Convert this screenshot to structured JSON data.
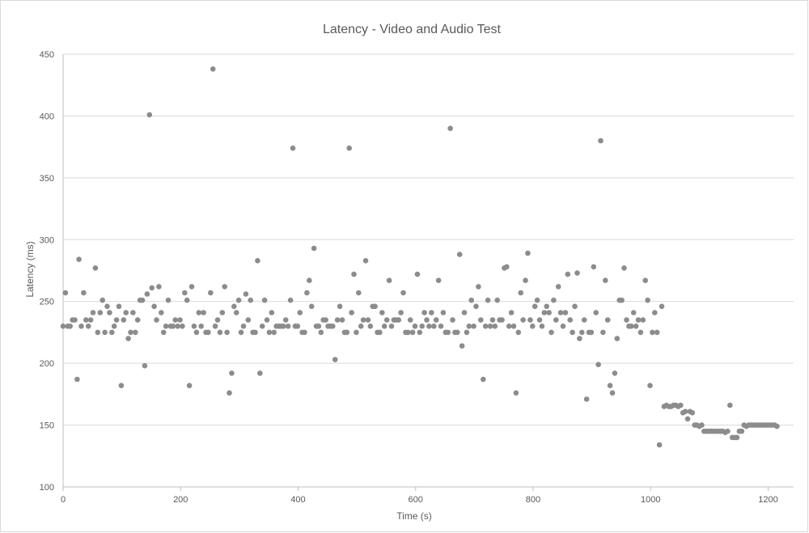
{
  "chart_data": {
    "type": "scatter",
    "title": "Latency - Video and Audio Test",
    "xlabel": "Time (s)",
    "ylabel": "Latency (ms)",
    "xlim": [
      0,
      1220
    ],
    "ylim": [
      100,
      450
    ],
    "x_ticks": [
      0,
      200,
      400,
      600,
      800,
      1000,
      1200
    ],
    "y_ticks": [
      100,
      150,
      200,
      250,
      300,
      350,
      400,
      450
    ],
    "grid": true,
    "legend": "none",
    "color": "#8c8c8c",
    "series": [
      {
        "points": [
          [
            0,
            230
          ],
          [
            4,
            257
          ],
          [
            8,
            230
          ],
          [
            12,
            230
          ],
          [
            16,
            235
          ],
          [
            20,
            235
          ],
          [
            24,
            187
          ],
          [
            27,
            284
          ],
          [
            31,
            230
          ],
          [
            35,
            257
          ],
          [
            39,
            235
          ],
          [
            43,
            230
          ],
          [
            47,
            235
          ],
          [
            51,
            241
          ],
          [
            55,
            277
          ],
          [
            59,
            225
          ],
          [
            63,
            241
          ],
          [
            67,
            251
          ],
          [
            71,
            225
          ],
          [
            75,
            246
          ],
          [
            79,
            241
          ],
          [
            83,
            225
          ],
          [
            87,
            230
          ],
          [
            91,
            235
          ],
          [
            95,
            246
          ],
          [
            99,
            182
          ],
          [
            103,
            235
          ],
          [
            107,
            241
          ],
          [
            111,
            220
          ],
          [
            115,
            225
          ],
          [
            119,
            241
          ],
          [
            123,
            225
          ],
          [
            127,
            235
          ],
          [
            131,
            251
          ],
          [
            135,
            251
          ],
          [
            139,
            198
          ],
          [
            143,
            256
          ],
          [
            147,
            401
          ],
          [
            151,
            261
          ],
          [
            155,
            246
          ],
          [
            159,
            235
          ],
          [
            163,
            262
          ],
          [
            167,
            241
          ],
          [
            171,
            225
          ],
          [
            175,
            230
          ],
          [
            179,
            251
          ],
          [
            183,
            230
          ],
          [
            187,
            230
          ],
          [
            191,
            235
          ],
          [
            195,
            230
          ],
          [
            199,
            235
          ],
          [
            203,
            230
          ],
          [
            207,
            257
          ],
          [
            211,
            251
          ],
          [
            215,
            182
          ],
          [
            219,
            262
          ],
          [
            223,
            230
          ],
          [
            227,
            225
          ],
          [
            231,
            241
          ],
          [
            235,
            230
          ],
          [
            239,
            241
          ],
          [
            243,
            225
          ],
          [
            247,
            225
          ],
          [
            251,
            257
          ],
          [
            255,
            438
          ],
          [
            259,
            230
          ],
          [
            263,
            235
          ],
          [
            267,
            225
          ],
          [
            271,
            241
          ],
          [
            275,
            262
          ],
          [
            279,
            225
          ],
          [
            283,
            176
          ],
          [
            287,
            192
          ],
          [
            291,
            246
          ],
          [
            295,
            241
          ],
          [
            299,
            251
          ],
          [
            303,
            225
          ],
          [
            307,
            230
          ],
          [
            311,
            256
          ],
          [
            315,
            235
          ],
          [
            319,
            251
          ],
          [
            323,
            225
          ],
          [
            327,
            225
          ],
          [
            331,
            283
          ],
          [
            335,
            192
          ],
          [
            339,
            230
          ],
          [
            343,
            251
          ],
          [
            347,
            235
          ],
          [
            351,
            225
          ],
          [
            355,
            241
          ],
          [
            359,
            225
          ],
          [
            363,
            230
          ],
          [
            367,
            230
          ],
          [
            371,
            230
          ],
          [
            375,
            230
          ],
          [
            379,
            235
          ],
          [
            383,
            230
          ],
          [
            387,
            251
          ],
          [
            391,
            374
          ],
          [
            395,
            230
          ],
          [
            399,
            230
          ],
          [
            403,
            241
          ],
          [
            407,
            225
          ],
          [
            411,
            225
          ],
          [
            415,
            257
          ],
          [
            419,
            267
          ],
          [
            423,
            246
          ],
          [
            427,
            293
          ],
          [
            431,
            230
          ],
          [
            435,
            230
          ],
          [
            439,
            225
          ],
          [
            443,
            235
          ],
          [
            447,
            235
          ],
          [
            451,
            230
          ],
          [
            455,
            230
          ],
          [
            459,
            230
          ],
          [
            463,
            203
          ],
          [
            467,
            235
          ],
          [
            471,
            246
          ],
          [
            475,
            235
          ],
          [
            479,
            225
          ],
          [
            483,
            225
          ],
          [
            487,
            374
          ],
          [
            491,
            241
          ],
          [
            495,
            272
          ],
          [
            499,
            225
          ],
          [
            503,
            257
          ],
          [
            507,
            230
          ],
          [
            511,
            235
          ],
          [
            515,
            283
          ],
          [
            519,
            235
          ],
          [
            523,
            230
          ],
          [
            527,
            246
          ],
          [
            531,
            246
          ],
          [
            535,
            225
          ],
          [
            539,
            225
          ],
          [
            543,
            241
          ],
          [
            547,
            230
          ],
          [
            551,
            235
          ],
          [
            555,
            267
          ],
          [
            559,
            230
          ],
          [
            563,
            235
          ],
          [
            567,
            235
          ],
          [
            571,
            235
          ],
          [
            575,
            241
          ],
          [
            579,
            257
          ],
          [
            583,
            225
          ],
          [
            587,
            225
          ],
          [
            591,
            235
          ],
          [
            595,
            225
          ],
          [
            599,
            230
          ],
          [
            603,
            272
          ],
          [
            607,
            225
          ],
          [
            611,
            230
          ],
          [
            615,
            241
          ],
          [
            619,
            235
          ],
          [
            623,
            230
          ],
          [
            627,
            241
          ],
          [
            631,
            230
          ],
          [
            635,
            235
          ],
          [
            639,
            267
          ],
          [
            643,
            230
          ],
          [
            647,
            241
          ],
          [
            651,
            225
          ],
          [
            655,
            225
          ],
          [
            659,
            390
          ],
          [
            663,
            235
          ],
          [
            667,
            225
          ],
          [
            671,
            225
          ],
          [
            675,
            288
          ],
          [
            679,
            214
          ],
          [
            683,
            241
          ],
          [
            687,
            225
          ],
          [
            691,
            230
          ],
          [
            695,
            251
          ],
          [
            699,
            230
          ],
          [
            703,
            246
          ],
          [
            707,
            262
          ],
          [
            711,
            235
          ],
          [
            715,
            187
          ],
          [
            719,
            230
          ],
          [
            723,
            251
          ],
          [
            727,
            230
          ],
          [
            731,
            235
          ],
          [
            735,
            230
          ],
          [
            739,
            251
          ],
          [
            743,
            235
          ],
          [
            747,
            235
          ],
          [
            751,
            277
          ],
          [
            755,
            278
          ],
          [
            759,
            230
          ],
          [
            763,
            241
          ],
          [
            767,
            230
          ],
          [
            771,
            176
          ],
          [
            775,
            225
          ],
          [
            779,
            257
          ],
          [
            783,
            235
          ],
          [
            787,
            267
          ],
          [
            791,
            289
          ],
          [
            795,
            235
          ],
          [
            799,
            230
          ],
          [
            803,
            246
          ],
          [
            807,
            251
          ],
          [
            811,
            235
          ],
          [
            815,
            230
          ],
          [
            819,
            241
          ],
          [
            823,
            246
          ],
          [
            827,
            241
          ],
          [
            831,
            225
          ],
          [
            835,
            251
          ],
          [
            839,
            235
          ],
          [
            843,
            262
          ],
          [
            847,
            241
          ],
          [
            851,
            230
          ],
          [
            855,
            241
          ],
          [
            859,
            272
          ],
          [
            863,
            235
          ],
          [
            867,
            225
          ],
          [
            871,
            246
          ],
          [
            875,
            273
          ],
          [
            879,
            220
          ],
          [
            883,
            225
          ],
          [
            887,
            235
          ],
          [
            891,
            171
          ],
          [
            895,
            225
          ],
          [
            899,
            225
          ],
          [
            903,
            278
          ],
          [
            907,
            241
          ],
          [
            911,
            199
          ],
          [
            915,
            380
          ],
          [
            919,
            225
          ],
          [
            923,
            267
          ],
          [
            927,
            235
          ],
          [
            931,
            182
          ],
          [
            935,
            176
          ],
          [
            939,
            192
          ],
          [
            943,
            220
          ],
          [
            947,
            251
          ],
          [
            951,
            251
          ],
          [
            955,
            277
          ],
          [
            959,
            235
          ],
          [
            963,
            230
          ],
          [
            967,
            230
          ],
          [
            971,
            241
          ],
          [
            975,
            230
          ],
          [
            979,
            235
          ],
          [
            983,
            225
          ],
          [
            987,
            235
          ],
          [
            991,
            267
          ],
          [
            995,
            251
          ],
          [
            999,
            182
          ],
          [
            1003,
            225
          ],
          [
            1007,
            241
          ],
          [
            1011,
            225
          ],
          [
            1015,
            134
          ],
          [
            1019,
            246
          ],
          [
            1023,
            165
          ],
          [
            1027,
            166
          ],
          [
            1031,
            165
          ],
          [
            1035,
            165
          ],
          [
            1039,
            166
          ],
          [
            1043,
            166
          ],
          [
            1047,
            165
          ],
          [
            1051,
            166
          ],
          [
            1055,
            160
          ],
          [
            1059,
            161
          ],
          [
            1063,
            155
          ],
          [
            1067,
            161
          ],
          [
            1071,
            160
          ],
          [
            1075,
            150
          ],
          [
            1079,
            150
          ],
          [
            1083,
            149
          ],
          [
            1087,
            150
          ],
          [
            1091,
            145
          ],
          [
            1095,
            145
          ],
          [
            1099,
            145
          ],
          [
            1103,
            145
          ],
          [
            1107,
            145
          ],
          [
            1111,
            145
          ],
          [
            1115,
            145
          ],
          [
            1119,
            145
          ],
          [
            1123,
            145
          ],
          [
            1127,
            144
          ],
          [
            1131,
            145
          ],
          [
            1135,
            166
          ],
          [
            1139,
            140
          ],
          [
            1143,
            140
          ],
          [
            1147,
            140
          ],
          [
            1151,
            145
          ],
          [
            1155,
            145
          ],
          [
            1159,
            150
          ],
          [
            1163,
            149
          ],
          [
            1167,
            150
          ],
          [
            1171,
            150
          ],
          [
            1175,
            150
          ],
          [
            1179,
            150
          ],
          [
            1183,
            150
          ],
          [
            1187,
            150
          ],
          [
            1191,
            150
          ],
          [
            1195,
            150
          ],
          [
            1199,
            150
          ],
          [
            1203,
            150
          ],
          [
            1207,
            150
          ],
          [
            1211,
            150
          ],
          [
            1215,
            149
          ]
        ]
      }
    ]
  }
}
